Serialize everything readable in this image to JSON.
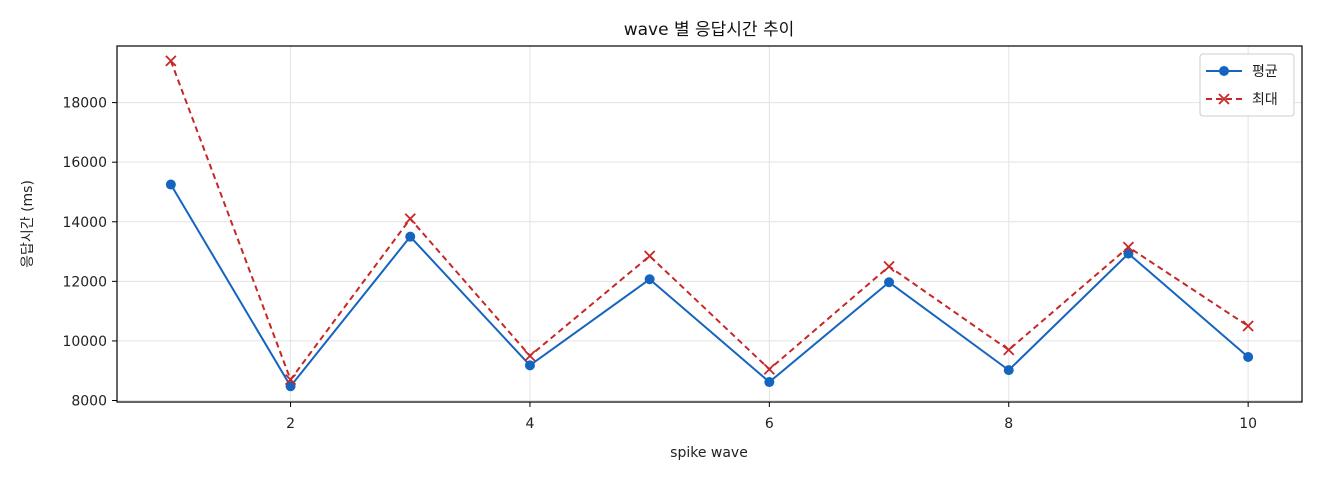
{
  "chart_data": {
    "type": "line",
    "title": "wave 별 응답시간 추이",
    "xlabel": "spike wave",
    "ylabel": "응답시간 (ms)",
    "x": [
      1,
      2,
      3,
      4,
      5,
      6,
      7,
      8,
      9,
      10
    ],
    "xlim": [
      0.55,
      10.45
    ],
    "ylim": [
      7950,
      19900
    ],
    "xticks": [
      2,
      4,
      6,
      8,
      10
    ],
    "yticks": [
      8000,
      10000,
      12000,
      14000,
      16000,
      18000
    ],
    "grid": true,
    "legend_position": "top-right",
    "series": [
      {
        "name": "평균",
        "color": "#1565c0",
        "line_style": "solid",
        "marker": "circle",
        "values": [
          15250,
          8480,
          13500,
          9180,
          12070,
          8620,
          11970,
          9020,
          12930,
          9460
        ]
      },
      {
        "name": "최대",
        "color": "#c62828",
        "line_style": "dashed",
        "marker": "x",
        "values": [
          19400,
          8700,
          14100,
          9500,
          12850,
          9050,
          12500,
          9700,
          13150,
          10500
        ]
      }
    ]
  }
}
